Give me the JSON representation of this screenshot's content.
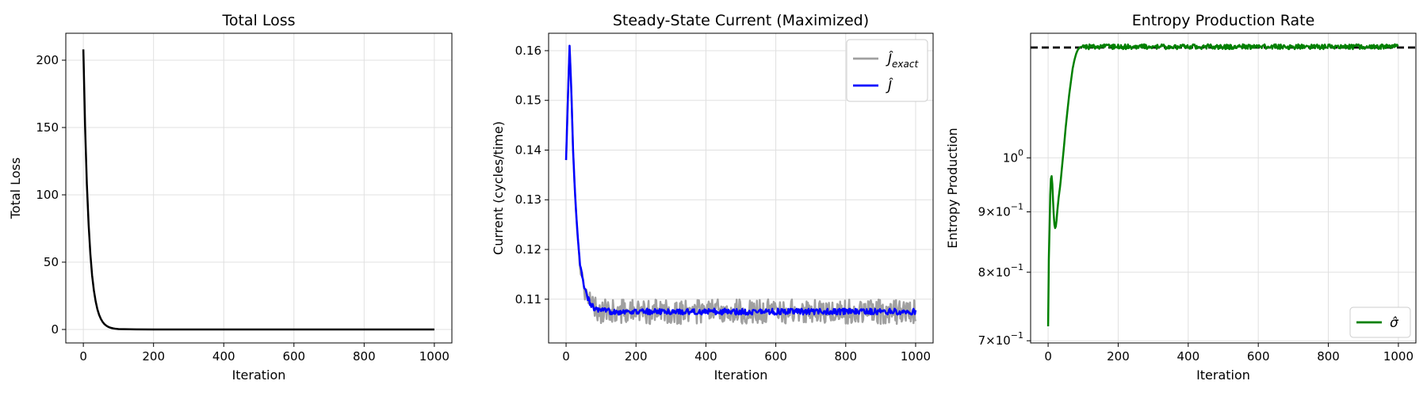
{
  "chart_data": [
    {
      "type": "line",
      "title": "Total Loss",
      "xlabel": "Iteration",
      "ylabel": "Total Loss",
      "xlim": [
        -50,
        1050
      ],
      "ylim": [
        -10,
        220
      ],
      "xticks": [
        0,
        200,
        400,
        600,
        800,
        1000
      ],
      "xtick_labels": [
        "0",
        "200",
        "400",
        "600",
        "800",
        "1000"
      ],
      "yticks": [
        0,
        50,
        100,
        150,
        200
      ],
      "ytick_labels": [
        "0",
        "50",
        "100",
        "150",
        "200"
      ],
      "grid": true,
      "series": [
        {
          "color": "#000000",
          "x": [
            0,
            5,
            10,
            15,
            20,
            25,
            30,
            35,
            40,
            45,
            50,
            55,
            60,
            65,
            70,
            75,
            80,
            85,
            90,
            100,
            150,
            200,
            300,
            400,
            500,
            600,
            700,
            800,
            900,
            1000
          ],
          "y": [
            208,
            150,
            108,
            78,
            56,
            40,
            29,
            21,
            15,
            10.8,
            7.8,
            5.6,
            4.0,
            2.9,
            2.1,
            1.5,
            1.1,
            0.8,
            0.6,
            0.3,
            0.05,
            0,
            0,
            0,
            0,
            0,
            0,
            0,
            0,
            0
          ]
        }
      ]
    },
    {
      "type": "line",
      "title": "Steady-State Current (Maximized)",
      "xlabel": "Iteration",
      "ylabel": "Current (cycles/time)",
      "xlim": [
        -50,
        1050
      ],
      "ylim": [
        0.1012,
        0.1635
      ],
      "xticks": [
        0,
        200,
        400,
        600,
        800,
        1000
      ],
      "xtick_labels": [
        "0",
        "200",
        "400",
        "600",
        "800",
        "1000"
      ],
      "yticks": [
        0.11,
        0.12,
        0.13,
        0.14,
        0.15,
        0.16
      ],
      "ytick_labels": [
        "0.11",
        "0.12",
        "0.13",
        "0.14",
        "0.15",
        "0.16"
      ],
      "grid": true,
      "legend_position": "top-right",
      "series": [
        {
          "name_main": "Ĵ",
          "name_sub": "exact",
          "color": "#a0a0a0",
          "noise_amplitude": 0.0025,
          "x": [
            0,
            5,
            10,
            15,
            20,
            25,
            30,
            35,
            40,
            50,
            60,
            70,
            80,
            90,
            100,
            150,
            200,
            300,
            400,
            500,
            600,
            700,
            800,
            900,
            1000
          ],
          "y": [
            0.138,
            0.15,
            0.161,
            0.152,
            0.14,
            0.132,
            0.126,
            0.121,
            0.117,
            0.113,
            0.1105,
            0.109,
            0.1082,
            0.1078,
            0.1076,
            0.1075,
            0.1075,
            0.1075,
            0.1075,
            0.1075,
            0.1075,
            0.1075,
            0.1075,
            0.1075,
            0.1075
          ]
        },
        {
          "name_main": "Ĵ",
          "name_sub": "",
          "color": "#0000ff",
          "noise_amplitude": 0.0006,
          "x": [
            0,
            5,
            10,
            15,
            20,
            25,
            30,
            35,
            40,
            50,
            60,
            70,
            80,
            90,
            100,
            150,
            200,
            300,
            400,
            500,
            600,
            700,
            800,
            900,
            1000
          ],
          "y": [
            0.138,
            0.15,
            0.161,
            0.152,
            0.14,
            0.132,
            0.126,
            0.121,
            0.117,
            0.113,
            0.1105,
            0.109,
            0.1082,
            0.1078,
            0.1076,
            0.1075,
            0.1075,
            0.1075,
            0.1075,
            0.1075,
            0.1075,
            0.1075,
            0.1075,
            0.1075,
            0.1075
          ]
        }
      ]
    },
    {
      "type": "line",
      "title": "Entropy Production Rate",
      "xlabel": "Iteration",
      "ylabel": "Entropy Production",
      "yscale": "log",
      "xlim": [
        -50,
        1050
      ],
      "ylim": [
        0.697,
        1.275
      ],
      "xticks": [
        0,
        200,
        400,
        600,
        800,
        1000
      ],
      "xtick_labels": [
        "0",
        "200",
        "400",
        "600",
        "800",
        "1000"
      ],
      "yticks": [
        {
          "value": 0.7,
          "mantissa": "7×10",
          "exp": "−1"
        },
        {
          "value": 0.8,
          "mantissa": "8×10",
          "exp": "−1"
        },
        {
          "value": 0.9,
          "mantissa": "9×10",
          "exp": "−1"
        },
        {
          "value": 1.0,
          "mantissa": "10",
          "exp": "0"
        }
      ],
      "grid": true,
      "legend_position": "bottom-right",
      "reference_line": {
        "y": 1.24,
        "color": "#000000",
        "style": "dashed"
      },
      "series": [
        {
          "name": "σ̂",
          "color": "#008000",
          "noise_amplitude": 0.006,
          "noise_start": 100,
          "x": [
            0,
            2,
            4,
            6,
            8,
            10,
            12,
            14,
            16,
            18,
            20,
            22,
            24,
            26,
            30,
            35,
            40,
            45,
            50,
            55,
            60,
            65,
            70,
            75,
            80,
            85,
            90,
            95,
            100,
            150,
            200,
            300,
            400,
            500,
            600,
            700,
            800,
            900,
            1000
          ],
          "y": [
            0.72,
            0.82,
            0.87,
            0.93,
            0.96,
            0.965,
            0.95,
            0.92,
            0.895,
            0.878,
            0.872,
            0.875,
            0.885,
            0.9,
            0.925,
            0.95,
            0.985,
            1.02,
            1.06,
            1.095,
            1.13,
            1.16,
            1.19,
            1.21,
            1.225,
            1.235,
            1.24,
            1.242,
            1.242,
            1.242,
            1.242,
            1.242,
            1.242,
            1.242,
            1.242,
            1.242,
            1.242,
            1.242,
            1.242
          ]
        }
      ]
    }
  ]
}
